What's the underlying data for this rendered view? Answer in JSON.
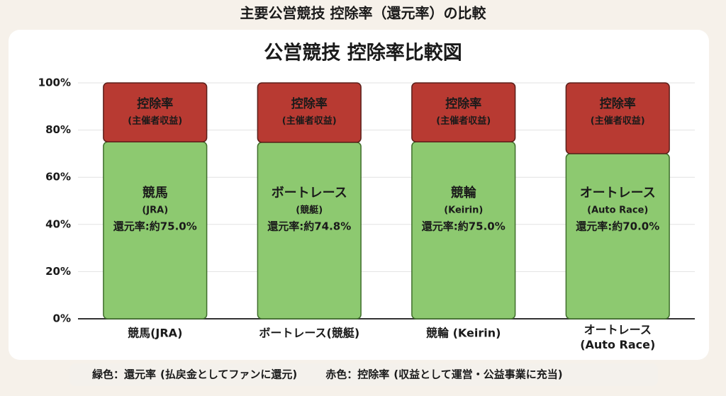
{
  "chart_data": {
    "type": "stacked_bar",
    "page_title": "主要公営競技 控除率（還元率）の比較",
    "title": "公営競技 控除率比較図",
    "categories": [
      "競馬(JRA)",
      "ボートレース(競艇)",
      "競輪 (Keirin)",
      "オートレース\n(Auto Race)"
    ],
    "bar_titles": [
      "競馬",
      "ボートレース",
      "競輪",
      "オートレース"
    ],
    "bar_subtitles": [
      "(JRA)",
      "(競艇)",
      "(Keirin)",
      "(Auto Race)"
    ],
    "series": [
      {
        "name": "還元率",
        "color": "#8dc970",
        "values": [
          75.0,
          74.8,
          75.0,
          70.0
        ],
        "value_labels": [
          "還元率:約75.0%",
          "還元率:約74.8%",
          "還元率:約75.0%",
          "還元率:約70.0%"
        ]
      },
      {
        "name": "控除率",
        "color": "#b83a32",
        "values": [
          25.0,
          25.2,
          25.0,
          30.0
        ],
        "segment_label": "控除率",
        "segment_sublabel": "(主催者収益)"
      }
    ],
    "ylim": [
      0,
      100
    ],
    "yticks": [
      {
        "value": 0,
        "label": "0%"
      },
      {
        "value": 20,
        "label": "20%"
      },
      {
        "value": 40,
        "label": "40%"
      },
      {
        "value": 60,
        "label": "60%"
      },
      {
        "value": 80,
        "label": "80%"
      },
      {
        "value": 100,
        "label": "100%"
      }
    ],
    "grid": true,
    "legend": [
      {
        "key": "緑色：還元率",
        "text": "(払戻金としてファンに還元)",
        "color": "#4a9a2c"
      },
      {
        "key": "赤色：控除率",
        "text": "(収益として運営・公益事業に充当)",
        "color": "#c0392b"
      }
    ]
  }
}
